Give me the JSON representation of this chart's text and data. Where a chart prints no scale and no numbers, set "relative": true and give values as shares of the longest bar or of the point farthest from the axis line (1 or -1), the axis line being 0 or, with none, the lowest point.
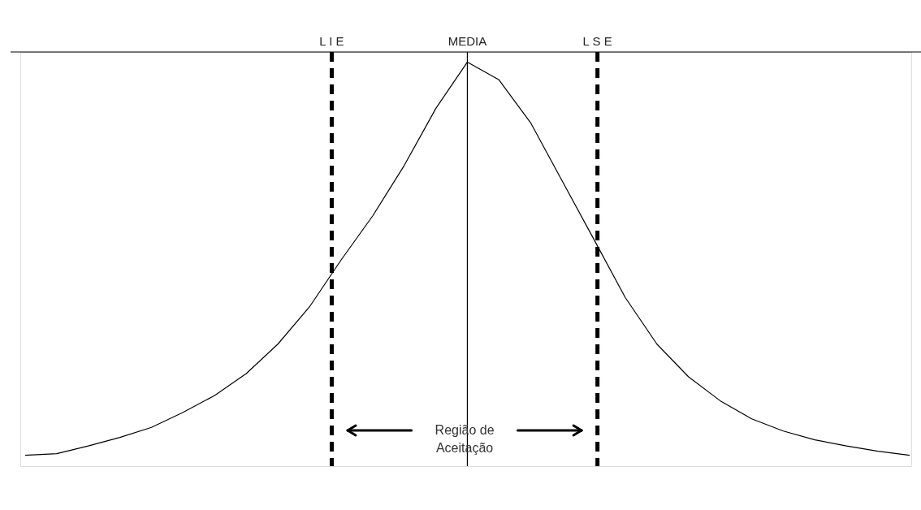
{
  "chart_data": {
    "type": "line",
    "relative": true,
    "color": "#000000",
    "marker": "none",
    "line_style": "solid",
    "categories": [
      null,
      null,
      null,
      null,
      null,
      null,
      null,
      null,
      null,
      null,
      null,
      null,
      null,
      null,
      null,
      null,
      null,
      null,
      null,
      null,
      null,
      null,
      null,
      null,
      null,
      null,
      null,
      null,
      null
    ],
    "values": [
      0.027,
      0.031,
      0.05,
      0.071,
      0.096,
      0.133,
      0.175,
      0.229,
      0.302,
      0.394,
      0.51,
      0.619,
      0.744,
      0.885,
      1.0,
      0.956,
      0.85,
      0.706,
      0.562,
      0.417,
      0.302,
      0.221,
      0.162,
      0.117,
      0.087,
      0.065,
      0.05,
      0.037,
      0.027
    ],
    "annotations": [
      "L I E",
      "MEDIA",
      "L S E",
      "Região de Aceitação"
    ]
  }
}
